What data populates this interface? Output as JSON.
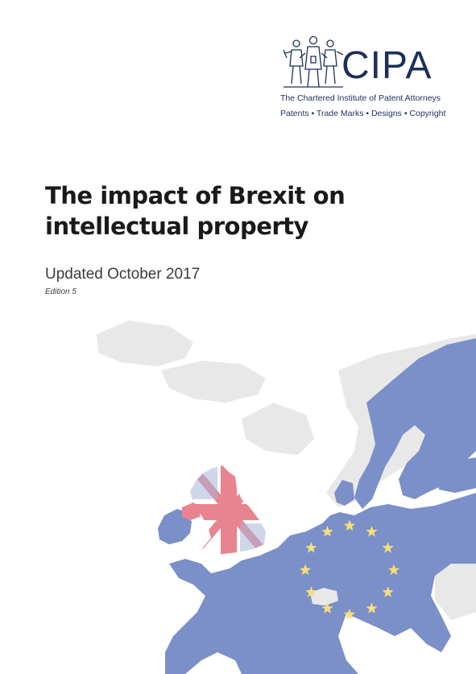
{
  "logo": {
    "wordmark": "CIPA",
    "subtitle": "The Chartered Institute of Patent Attorneys",
    "tagline": "Patents • Trade Marks • Designs • Copyright",
    "color": "#1b2f5c"
  },
  "cover": {
    "title": "The impact of Brexit on intellectual property",
    "subtitle": "Updated October 2017",
    "edition": "Edition 5"
  },
  "map": {
    "eu_color": "#7b8fc8",
    "land_color": "#e8e8e8",
    "uk_flag_red": "#e8848f",
    "star_color": "#f6de7a",
    "star_count": 12
  }
}
